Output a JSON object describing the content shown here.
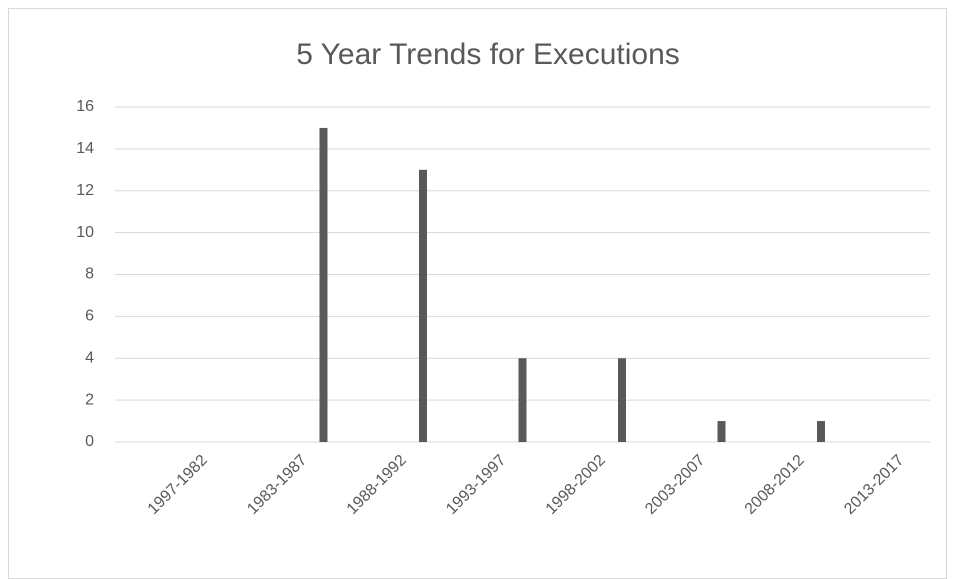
{
  "chart_data": {
    "type": "bar",
    "title": "5 Year Trends for Executions",
    "categories": [
      "1997-1982",
      "1983-1987",
      "1988-1992",
      "1993-1997",
      "1998-2002",
      "2003-2007",
      "2008-2012",
      "2013-2017"
    ],
    "values": [
      0,
      15,
      13,
      4,
      4,
      1,
      1,
      0
    ],
    "color": "#595959",
    "ylim": [
      0,
      16
    ],
    "yticks": [
      0,
      2,
      4,
      6,
      8,
      10,
      12,
      14,
      16
    ],
    "grid": true
  }
}
